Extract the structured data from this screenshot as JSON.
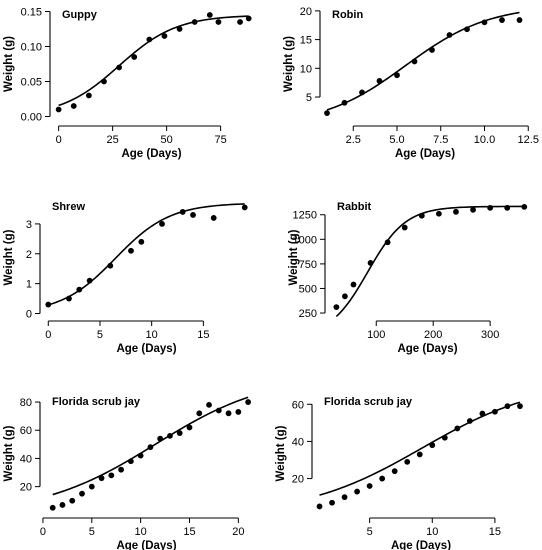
{
  "chart_data": [
    {
      "type": "scatter",
      "title": "Guppy",
      "xlabel": "Age (Days)",
      "ylabel": "Weight (g)",
      "xlim": [
        -4,
        90
      ],
      "ylim": [
        -0.005,
        0.155
      ],
      "xticks": [
        0,
        25,
        50,
        75
      ],
      "yticks": [
        0.0,
        0.05,
        0.1,
        0.15
      ],
      "ytick_decimals": 2,
      "x": [
        0,
        7,
        14,
        21,
        28,
        35,
        42,
        49,
        56,
        63,
        70,
        74,
        84,
        88
      ],
      "y": [
        0.01,
        0.015,
        0.03,
        0.05,
        0.07,
        0.085,
        0.11,
        0.115,
        0.125,
        0.135,
        0.145,
        0.135,
        0.135,
        0.14
      ],
      "fit": {
        "model": "logistic",
        "K": 0.145,
        "r": 0.075,
        "x0": 28
      }
    },
    {
      "type": "scatter",
      "title": "Robin",
      "xlabel": "Age (Days)",
      "ylabel": "Weight (g)",
      "xlim": [
        0.6,
        12.6
      ],
      "ylim": [
        1,
        20.5
      ],
      "xticks": [
        2.5,
        5.0,
        7.5,
        10.0,
        12.5
      ],
      "yticks": [
        5,
        10,
        15,
        20
      ],
      "xtick_decimals": 1,
      "x": [
        1,
        2,
        3,
        4,
        5,
        6,
        7,
        8,
        9,
        10,
        11,
        12
      ],
      "y": [
        2.2,
        4.0,
        5.8,
        7.8,
        8.8,
        11.2,
        13.2,
        15.8,
        16.8,
        18.0,
        18.4,
        18.4
      ],
      "fit": {
        "model": "logistic",
        "K": 21.0,
        "r": 0.42,
        "x0": 5.5
      }
    },
    {
      "type": "scatter",
      "title": "Shrew",
      "xlabel": "Age (Days)",
      "ylabel": "Weight (g)",
      "xlim": [
        -0.8,
        19.8
      ],
      "ylim": [
        -0.05,
        3.8
      ],
      "xticks": [
        0,
        5,
        10,
        15
      ],
      "yticks": [
        0,
        1,
        2,
        3
      ],
      "x": [
        0,
        2,
        3,
        4,
        6,
        8,
        9,
        11,
        13,
        14,
        16,
        19
      ],
      "y": [
        0.3,
        0.5,
        0.8,
        1.1,
        1.6,
        2.1,
        2.4,
        3.0,
        3.4,
        3.3,
        3.2,
        3.55
      ],
      "fit": {
        "model": "logistic",
        "K": 3.7,
        "r": 0.38,
        "x0": 6.5
      }
    },
    {
      "type": "scatter",
      "title": "Rabbit",
      "xlabel": "Age (Days)",
      "ylabel": "Weight (g)",
      "xlim": [
        10,
        370
      ],
      "ylim": [
        230,
        1400
      ],
      "xticks": [
        100,
        200,
        300
      ],
      "yticks": [
        250,
        500,
        750,
        1000,
        1250
      ],
      "x": [
        30,
        45,
        60,
        90,
        120,
        150,
        180,
        210,
        240,
        270,
        300,
        330,
        360
      ],
      "y": [
        310,
        420,
        540,
        760,
        970,
        1120,
        1240,
        1260,
        1280,
        1300,
        1320,
        1320,
        1330
      ],
      "fit": {
        "model": "logistic",
        "K": 1335,
        "r": 0.03,
        "x0": 85
      }
    },
    {
      "type": "scatter",
      "title": "Florida scrub jay",
      "xlabel": "Age (Days)",
      "ylabel": "Weight (g)",
      "xlim": [
        -0.3,
        21.5
      ],
      "ylim": [
        2,
        85
      ],
      "xticks": [
        0,
        5,
        10,
        15,
        20
      ],
      "yticks": [
        20,
        40,
        60,
        80
      ],
      "x": [
        1,
        2,
        3,
        4,
        5,
        6,
        7,
        8,
        9,
        10,
        11,
        12,
        13,
        14,
        15,
        16,
        17,
        18,
        19,
        20,
        21
      ],
      "y": [
        5,
        7,
        10,
        15,
        20,
        26,
        28,
        32,
        38,
        42,
        48,
        54,
        56,
        58,
        62,
        72,
        78,
        74,
        72,
        73,
        80
      ],
      "fit": {
        "model": "logistic",
        "K": 100,
        "r": 0.17,
        "x0": 11.5
      }
    },
    {
      "type": "scatter",
      "title": "Florida scrub jay",
      "xlabel": "Age (Days)",
      "ylabel": "Weight (g)",
      "xlim": [
        0.4,
        17.8
      ],
      "ylim": [
        2,
        65
      ],
      "xticks": [
        5,
        10,
        15
      ],
      "yticks": [
        20,
        40,
        60
      ],
      "x": [
        1,
        2,
        3,
        4,
        5,
        6,
        7,
        8,
        9,
        10,
        11,
        12,
        13,
        14,
        15,
        16,
        17
      ],
      "y": [
        5,
        7,
        10,
        13,
        16,
        20,
        24,
        29,
        33,
        38,
        42,
        47,
        51,
        55,
        56,
        59,
        59
      ],
      "fit": {
        "model": "logistic",
        "K": 73,
        "r": 0.21,
        "x0": 9.2
      }
    }
  ]
}
